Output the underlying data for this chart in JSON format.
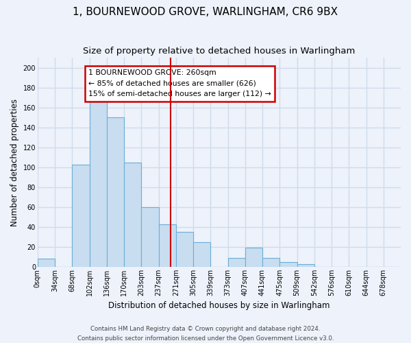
{
  "title": "1, BOURNEWOOD GROVE, WARLINGHAM, CR6 9BX",
  "subtitle": "Size of property relative to detached houses in Warlingham",
  "xlabel": "Distribution of detached houses by size in Warlingham",
  "ylabel": "Number of detached properties",
  "bar_labels": [
    "0sqm",
    "34sqm",
    "68sqm",
    "102sqm",
    "136sqm",
    "170sqm",
    "203sqm",
    "237sqm",
    "271sqm",
    "305sqm",
    "339sqm",
    "373sqm",
    "407sqm",
    "441sqm",
    "475sqm",
    "509sqm",
    "542sqm",
    "576sqm",
    "610sqm",
    "644sqm",
    "678sqm"
  ],
  "bar_values": [
    8,
    0,
    103,
    166,
    150,
    105,
    60,
    43,
    35,
    25,
    0,
    9,
    19,
    9,
    5,
    3,
    0,
    0,
    0,
    0,
    0
  ],
  "bar_color": "#c8ddf0",
  "bar_edge_color": "#6baed6",
  "ylim": [
    0,
    210
  ],
  "yticks": [
    0,
    20,
    40,
    60,
    80,
    100,
    120,
    140,
    160,
    180,
    200
  ],
  "property_line_label": "1 BOURNEWOOD GROVE: 260sqm",
  "annotation_line1": "← 85% of detached houses are smaller (626)",
  "annotation_line2": "15% of semi-detached houses are larger (112) →",
  "footer1": "Contains HM Land Registry data © Crown copyright and database right 2024.",
  "footer2": "Contains public sector information licensed under the Open Government Licence v3.0.",
  "bg_color": "#edf2fb",
  "grid_color": "#d0dcea",
  "title_fontsize": 11,
  "subtitle_fontsize": 9.5,
  "axis_label_fontsize": 8.5,
  "tick_fontsize": 7,
  "footer_fontsize": 6.2
}
